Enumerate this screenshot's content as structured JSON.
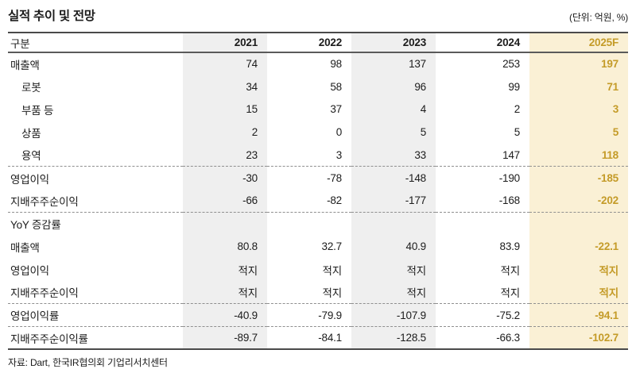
{
  "title": "실적 추이 및 전망",
  "unit_label": "(단위: 억원, %)",
  "source": "자료: Dart, 한국IR협의회 기업리서치센터",
  "colors": {
    "stripe_bg": "#efefef",
    "highlight_bg": "#faf0d5",
    "highlight_text": "#c49b28",
    "line_dark": "#4a4a4a",
    "dash": "#8f8f8f"
  },
  "chart_data": {
    "type": "table",
    "title": "실적 추이 및 전망",
    "unit": "억원, %",
    "columns": [
      "구분",
      "2021",
      "2022",
      "2023",
      "2024",
      "2025F"
    ],
    "rows": [
      {
        "label": "매출액",
        "indent": false,
        "values": [
          "74",
          "98",
          "137",
          "253",
          "197"
        ],
        "divider_after": false
      },
      {
        "label": "로봇",
        "indent": true,
        "values": [
          "34",
          "58",
          "96",
          "99",
          "71"
        ],
        "divider_after": false
      },
      {
        "label": "부품 등",
        "indent": true,
        "values": [
          "15",
          "37",
          "4",
          "2",
          "3"
        ],
        "divider_after": false
      },
      {
        "label": "상품",
        "indent": true,
        "values": [
          "2",
          "0",
          "5",
          "5",
          "5"
        ],
        "divider_after": false
      },
      {
        "label": "용역",
        "indent": true,
        "values": [
          "23",
          "3",
          "33",
          "147",
          "118"
        ],
        "divider_after": true
      },
      {
        "label": "영업이익",
        "indent": false,
        "values": [
          "-30",
          "-78",
          "-148",
          "-190",
          "-185"
        ],
        "divider_after": false
      },
      {
        "label": "지배주주순이익",
        "indent": false,
        "values": [
          "-66",
          "-82",
          "-177",
          "-168",
          "-202"
        ],
        "divider_after": true
      },
      {
        "label": "YoY 증감률",
        "indent": false,
        "values": [
          "",
          "",
          "",
          "",
          ""
        ],
        "divider_after": false
      },
      {
        "label": "매출액",
        "indent": false,
        "values": [
          "80.8",
          "32.7",
          "40.9",
          "83.9",
          "-22.1"
        ],
        "divider_after": false
      },
      {
        "label": "영업이익",
        "indent": false,
        "values": [
          "적지",
          "적지",
          "적지",
          "적지",
          "적지"
        ],
        "divider_after": false
      },
      {
        "label": "지배주주순이익",
        "indent": false,
        "values": [
          "적지",
          "적지",
          "적지",
          "적지",
          "적지"
        ],
        "divider_after": true
      },
      {
        "label": "영업이익률",
        "indent": false,
        "values": [
          "-40.9",
          "-79.9",
          "-107.9",
          "-75.2",
          "-94.1"
        ],
        "divider_after": true
      },
      {
        "label": "지배주주순이익률",
        "indent": false,
        "values": [
          "-89.7",
          "-84.1",
          "-128.5",
          "-66.3",
          "-102.7"
        ],
        "divider_after": false
      }
    ]
  }
}
